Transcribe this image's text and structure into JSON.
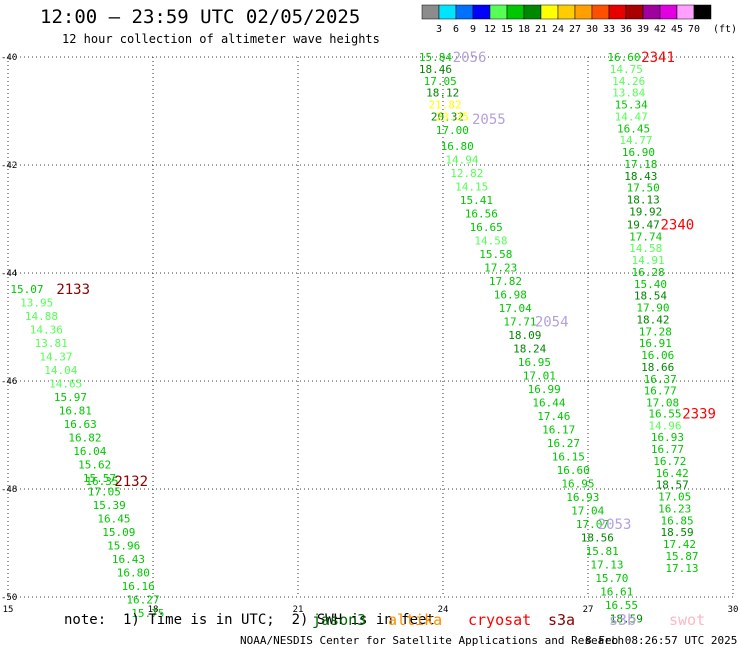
{
  "title": "12:00 — 23:59 UTC 02/05/2025",
  "subtitle": "12 hour collection of altimeter wave heights",
  "colorbar": {
    "unit": "(ft)",
    "ticks": [
      "3",
      "6",
      "9",
      "12",
      "15",
      "18",
      "21",
      "24",
      "27",
      "30",
      "33",
      "36",
      "39",
      "42",
      "45",
      "70"
    ],
    "colors": [
      "#8c8c8c",
      "#00e5ff",
      "#0070ff",
      "#0000ff",
      "#55ff55",
      "#00c800",
      "#008800",
      "#ffff00",
      "#ffcc00",
      "#ffa000",
      "#ff5000",
      "#e60000",
      "#aa0000",
      "#a000a0",
      "#e000e0",
      "#ffa0ff",
      "#000000"
    ]
  },
  "note": "note:  1) Time is in UTC;  2) SWH is in feet",
  "satellites": [
    {
      "name": "jason3",
      "color": "#006400"
    },
    {
      "name": "altika",
      "color": "#ff8c00"
    },
    {
      "name": "cryosat",
      "color": "#ff0000"
    },
    {
      "name": "s3a",
      "color": "#8b0000"
    },
    {
      "name": "s3b",
      "color": "#b4a0dc"
    },
    {
      "name": "swot",
      "color": "#ffb6c1"
    }
  ],
  "credit": "NOAA/NESDIS Center for Satellite Applications and Research",
  "timestamp": "8 Feb 08:26:57 UTC 2025",
  "chart_data": {
    "type": "scatter",
    "xlim": [
      15,
      30
    ],
    "ylim": [
      -50,
      -40
    ],
    "x_ticks": [
      "15",
      "18",
      "21",
      "24",
      "27",
      "30"
    ],
    "y_ticks": [
      "-40",
      "-42",
      "-44",
      "-46",
      "-48",
      "-50"
    ],
    "grid": true,
    "tracks": [
      {
        "label": "2133",
        "label_color": "#8b0000",
        "label_x": 16.0,
        "label_y": -44.3,
        "points": [
          {
            "x": 15.05,
            "y": -44.3,
            "v": "15.07",
            "c": "#00c800"
          },
          {
            "x": 15.25,
            "y": -44.55,
            "v": "13.95",
            "c": "#55ff55"
          },
          {
            "x": 15.35,
            "y": -44.8,
            "v": "14.88",
            "c": "#55ff55"
          },
          {
            "x": 15.45,
            "y": -45.05,
            "v": "14.36",
            "c": "#55ff55"
          },
          {
            "x": 15.55,
            "y": -45.3,
            "v": "13.81",
            "c": "#55ff55"
          },
          {
            "x": 15.65,
            "y": -45.55,
            "v": "14.37",
            "c": "#55ff55"
          },
          {
            "x": 15.75,
            "y": -45.8,
            "v": "14.04",
            "c": "#55ff55"
          },
          {
            "x": 15.85,
            "y": -46.05,
            "v": "14.65",
            "c": "#55ff55"
          },
          {
            "x": 15.95,
            "y": -46.3,
            "v": "15.97",
            "c": "#00c800"
          },
          {
            "x": 16.05,
            "y": -46.55,
            "v": "16.81",
            "c": "#00c800"
          },
          {
            "x": 16.15,
            "y": -46.8,
            "v": "16.63",
            "c": "#00c800"
          },
          {
            "x": 16.25,
            "y": -47.05,
            "v": "16.82",
            "c": "#00c800"
          },
          {
            "x": 16.35,
            "y": -47.3,
            "v": "16.04",
            "c": "#00c800"
          },
          {
            "x": 16.45,
            "y": -47.55,
            "v": "15.62",
            "c": "#00c800"
          },
          {
            "x": 16.55,
            "y": -47.8,
            "v": "15.57",
            "c": "#00c800"
          },
          {
            "x": 16.65,
            "y": -48.05,
            "v": "17.05",
            "c": "#00c800"
          },
          {
            "x": 16.75,
            "y": -48.3,
            "v": "15.39",
            "c": "#00c800"
          },
          {
            "x": 16.85,
            "y": -48.55,
            "v": "16.45",
            "c": "#00c800"
          },
          {
            "x": 16.95,
            "y": -48.8,
            "v": "15.09",
            "c": "#00c800"
          },
          {
            "x": 17.05,
            "y": -49.05,
            "v": "15.96",
            "c": "#00c800"
          },
          {
            "x": 17.15,
            "y": -49.3,
            "v": "16.43",
            "c": "#00c800"
          },
          {
            "x": 17.25,
            "y": -49.55,
            "v": "16.80",
            "c": "#00c800"
          },
          {
            "x": 17.35,
            "y": -49.8,
            "v": "16.16",
            "c": "#00c800"
          },
          {
            "x": 17.45,
            "y": -50.05,
            "v": "16.27",
            "c": "#00c800"
          },
          {
            "x": 17.55,
            "y": -50.3,
            "v": "15.75",
            "c": "#00c800"
          }
        ]
      },
      {
        "label": "2132",
        "label_color": "#8b0000",
        "label_x": 17.2,
        "label_y": -47.85,
        "points": [
          {
            "x": 16.6,
            "y": -47.85,
            "v": "16.35",
            "c": "#00c800"
          }
        ]
      },
      {
        "label": "2056",
        "label_color": "#b4a0dc",
        "label_x": 24.2,
        "label_y": -40.0,
        "points": [
          {
            "x": 23.5,
            "y": -40.0,
            "v": "15.84",
            "c": "#00c800"
          },
          {
            "x": 23.5,
            "y": -40.22,
            "v": "18.46",
            "c": "#008800"
          },
          {
            "x": 23.6,
            "y": -40.44,
            "v": "17.05",
            "c": "#00c800"
          },
          {
            "x": 23.65,
            "y": -40.66,
            "v": "18.12",
            "c": "#008800"
          },
          {
            "x": 23.7,
            "y": -40.88,
            "v": "21.82",
            "c": "#ffff00"
          },
          {
            "x": 23.75,
            "y": -41.1,
            "v": "20.32",
            "c": "#008800"
          }
        ]
      },
      {
        "label": "2055",
        "label_color": "#b4a0dc",
        "label_x": 24.6,
        "label_y": -41.15,
        "points": [
          {
            "x": 23.85,
            "y": -41.1,
            "v": "23.35",
            "c": "#ffff00"
          },
          {
            "x": 23.85,
            "y": -41.35,
            "v": "17.00",
            "c": "#00c800"
          },
          {
            "x": 23.95,
            "y": -41.65,
            "v": "16.80",
            "c": "#00c800"
          },
          {
            "x": 24.05,
            "y": -41.9,
            "v": "14.94",
            "c": "#55ff55"
          },
          {
            "x": 24.15,
            "y": -42.15,
            "v": "12.82",
            "c": "#55ff55"
          },
          {
            "x": 24.25,
            "y": -42.4,
            "v": "14.15",
            "c": "#55ff55"
          },
          {
            "x": 24.35,
            "y": -42.65,
            "v": "15.41",
            "c": "#00c800"
          },
          {
            "x": 24.45,
            "y": -42.9,
            "v": "16.56",
            "c": "#00c800"
          },
          {
            "x": 24.55,
            "y": -43.15,
            "v": "16.65",
            "c": "#00c800"
          },
          {
            "x": 24.65,
            "y": -43.4,
            "v": "14.58",
            "c": "#55ff55"
          },
          {
            "x": 24.75,
            "y": -43.65,
            "v": "15.58",
            "c": "#00c800"
          },
          {
            "x": 24.85,
            "y": -43.9,
            "v": "17.23",
            "c": "#00c800"
          },
          {
            "x": 24.95,
            "y": -44.15,
            "v": "17.82",
            "c": "#00c800"
          },
          {
            "x": 25.05,
            "y": -44.4,
            "v": "16.98",
            "c": "#00c800"
          },
          {
            "x": 25.15,
            "y": -44.65,
            "v": "17.04",
            "c": "#00c800"
          },
          {
            "x": 25.25,
            "y": -44.9,
            "v": "17.71",
            "c": "#00c800"
          },
          {
            "x": 25.35,
            "y": -45.15,
            "v": "18.09",
            "c": "#008800"
          },
          {
            "x": 25.45,
            "y": -45.4,
            "v": "18.24",
            "c": "#008800"
          },
          {
            "x": 25.55,
            "y": -45.65,
            "v": "16.95",
            "c": "#00c800"
          },
          {
            "x": 25.65,
            "y": -45.9,
            "v": "17.01",
            "c": "#00c800"
          },
          {
            "x": 25.75,
            "y": -46.15,
            "v": "16.99",
            "c": "#00c800"
          },
          {
            "x": 25.85,
            "y": -46.4,
            "v": "16.44",
            "c": "#00c800"
          },
          {
            "x": 25.95,
            "y": -46.65,
            "v": "17.46",
            "c": "#00c800"
          },
          {
            "x": 26.05,
            "y": -46.9,
            "v": "16.17",
            "c": "#00c800"
          },
          {
            "x": 26.15,
            "y": -47.15,
            "v": "16.27",
            "c": "#00c800"
          },
          {
            "x": 26.25,
            "y": -47.4,
            "v": "16.15",
            "c": "#00c800"
          },
          {
            "x": 26.35,
            "y": -47.65,
            "v": "16.60",
            "c": "#00c800"
          },
          {
            "x": 26.45,
            "y": -47.9,
            "v": "16.95",
            "c": "#00c800"
          },
          {
            "x": 26.55,
            "y": -48.15,
            "v": "16.93",
            "c": "#00c800"
          },
          {
            "x": 26.65,
            "y": -48.4,
            "v": "17.04",
            "c": "#00c800"
          }
        ]
      },
      {
        "label": "2054",
        "label_color": "#b4a0dc",
        "label_x": 25.9,
        "label_y": -44.9,
        "points": []
      },
      {
        "label": "2053",
        "label_color": "#b4a0dc",
        "label_x": 27.2,
        "label_y": -48.65,
        "points": [
          {
            "x": 26.75,
            "y": -48.65,
            "v": "17.07",
            "c": "#00c800"
          },
          {
            "x": 26.85,
            "y": -48.9,
            "v": "18.56",
            "c": "#008800"
          },
          {
            "x": 26.95,
            "y": -49.15,
            "v": "15.81",
            "c": "#00c800"
          },
          {
            "x": 27.05,
            "y": -49.4,
            "v": "17.13",
            "c": "#00c800"
          },
          {
            "x": 27.15,
            "y": -49.65,
            "v": "15.70",
            "c": "#00c800"
          },
          {
            "x": 27.25,
            "y": -49.9,
            "v": "16.61",
            "c": "#00c800"
          },
          {
            "x": 27.35,
            "y": -50.15,
            "v": "16.55",
            "c": "#00c800"
          },
          {
            "x": 27.45,
            "y": -50.4,
            "v": "18.59",
            "c": "#008800"
          }
        ]
      },
      {
        "label": "2341",
        "label_color": "#ff0000",
        "label_x": 28.1,
        "label_y": -40.0,
        "points": [
          {
            "x": 27.4,
            "y": -40.0,
            "v": "16.60",
            "c": "#00c800"
          },
          {
            "x": 27.45,
            "y": -40.22,
            "v": "14.75",
            "c": "#55ff55"
          },
          {
            "x": 27.5,
            "y": -40.44,
            "v": "14.26",
            "c": "#55ff55"
          },
          {
            "x": 27.5,
            "y": -40.66,
            "v": "13.84",
            "c": "#55ff55"
          },
          {
            "x": 27.55,
            "y": -40.88,
            "v": "15.34",
            "c": "#00c800"
          },
          {
            "x": 27.55,
            "y": -41.1,
            "v": "14.47",
            "c": "#55ff55"
          },
          {
            "x": 27.6,
            "y": -41.32,
            "v": "16.45",
            "c": "#00c800"
          },
          {
            "x": 27.65,
            "y": -41.54,
            "v": "14.77",
            "c": "#55ff55"
          },
          {
            "x": 27.7,
            "y": -41.76,
            "v": "16.90",
            "c": "#00c800"
          },
          {
            "x": 27.75,
            "y": -41.98,
            "v": "17.18",
            "c": "#00c800"
          },
          {
            "x": 27.75,
            "y": -42.2,
            "v": "18.43",
            "c": "#008800"
          },
          {
            "x": 27.8,
            "y": -42.42,
            "v": "17.50",
            "c": "#00c800"
          },
          {
            "x": 27.8,
            "y": -42.64,
            "v": "18.13",
            "c": "#008800"
          },
          {
            "x": 27.85,
            "y": -42.86,
            "v": "19.92",
            "c": "#008800"
          }
        ]
      },
      {
        "label": "2340",
        "label_color": "#ff0000",
        "label_x": 28.5,
        "label_y": -43.1,
        "points": [
          {
            "x": 27.8,
            "y": -43.1,
            "v": "19.47",
            "c": "#008800"
          },
          {
            "x": 27.85,
            "y": -43.32,
            "v": "17.74",
            "c": "#00c800"
          },
          {
            "x": 27.85,
            "y": -43.54,
            "v": "14.58",
            "c": "#55ff55"
          },
          {
            "x": 27.9,
            "y": -43.76,
            "v": "14.91",
            "c": "#55ff55"
          },
          {
            "x": 27.9,
            "y": -43.98,
            "v": "16.28",
            "c": "#00c800"
          },
          {
            "x": 27.95,
            "y": -44.2,
            "v": "15.40",
            "c": "#00c800"
          },
          {
            "x": 27.95,
            "y": -44.42,
            "v": "18.54",
            "c": "#008800"
          },
          {
            "x": 28.0,
            "y": -44.64,
            "v": "17.90",
            "c": "#00c800"
          },
          {
            "x": 28.0,
            "y": -44.86,
            "v": "18.42",
            "c": "#008800"
          },
          {
            "x": 28.05,
            "y": -45.08,
            "v": "17.28",
            "c": "#00c800"
          },
          {
            "x": 28.05,
            "y": -45.3,
            "v": "16.91",
            "c": "#00c800"
          },
          {
            "x": 28.1,
            "y": -45.52,
            "v": "16.06",
            "c": "#00c800"
          },
          {
            "x": 28.1,
            "y": -45.74,
            "v": "18.66",
            "c": "#008800"
          },
          {
            "x": 28.15,
            "y": -45.96,
            "v": "16.37",
            "c": "#00c800"
          },
          {
            "x": 28.15,
            "y": -46.18,
            "v": "16.77",
            "c": "#00c800"
          },
          {
            "x": 28.2,
            "y": -46.4,
            "v": "17.08",
            "c": "#00c800"
          }
        ]
      },
      {
        "label": "2339",
        "label_color": "#ff0000",
        "label_x": 28.95,
        "label_y": -46.6,
        "points": [
          {
            "x": 28.25,
            "y": -46.6,
            "v": "16.55",
            "c": "#00c800"
          },
          {
            "x": 28.25,
            "y": -46.82,
            "v": "14.96",
            "c": "#55ff55"
          },
          {
            "x": 28.3,
            "y": -47.04,
            "v": "16.93",
            "c": "#00c800"
          },
          {
            "x": 28.3,
            "y": -47.26,
            "v": "16.77",
            "c": "#00c800"
          },
          {
            "x": 28.35,
            "y": -47.48,
            "v": "16.72",
            "c": "#00c800"
          },
          {
            "x": 28.4,
            "y": -47.7,
            "v": "16.42",
            "c": "#00c800"
          },
          {
            "x": 28.4,
            "y": -47.92,
            "v": "18.57",
            "c": "#008800"
          },
          {
            "x": 28.45,
            "y": -48.14,
            "v": "17.05",
            "c": "#00c800"
          },
          {
            "x": 28.45,
            "y": -48.36,
            "v": "16.23",
            "c": "#00c800"
          },
          {
            "x": 28.5,
            "y": -48.58,
            "v": "16.85",
            "c": "#00c800"
          },
          {
            "x": 28.5,
            "y": -48.8,
            "v": "18.59",
            "c": "#008800"
          },
          {
            "x": 28.55,
            "y": -49.02,
            "v": "17.42",
            "c": "#00c800"
          },
          {
            "x": 28.6,
            "y": -49.24,
            "v": "15.87",
            "c": "#00c800"
          },
          {
            "x": 28.6,
            "y": -49.46,
            "v": "17.13",
            "c": "#00c800"
          }
        ]
      }
    ]
  }
}
